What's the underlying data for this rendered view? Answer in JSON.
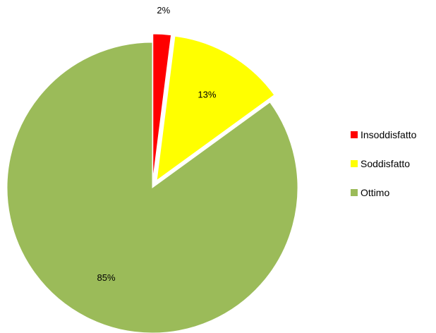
{
  "chart_data": {
    "type": "pie",
    "title": "",
    "slices": [
      {
        "label": "Insoddisfatto",
        "value": 2,
        "display": "2%",
        "color": "#FF0000",
        "exploded": true
      },
      {
        "label": "Soddisfatto",
        "value": 13,
        "display": "13%",
        "color": "#FFFF00",
        "exploded": true
      },
      {
        "label": "Ottimo",
        "value": 85,
        "display": "85%",
        "color": "#9BBB59",
        "exploded": false
      }
    ],
    "legend_position": "right"
  }
}
